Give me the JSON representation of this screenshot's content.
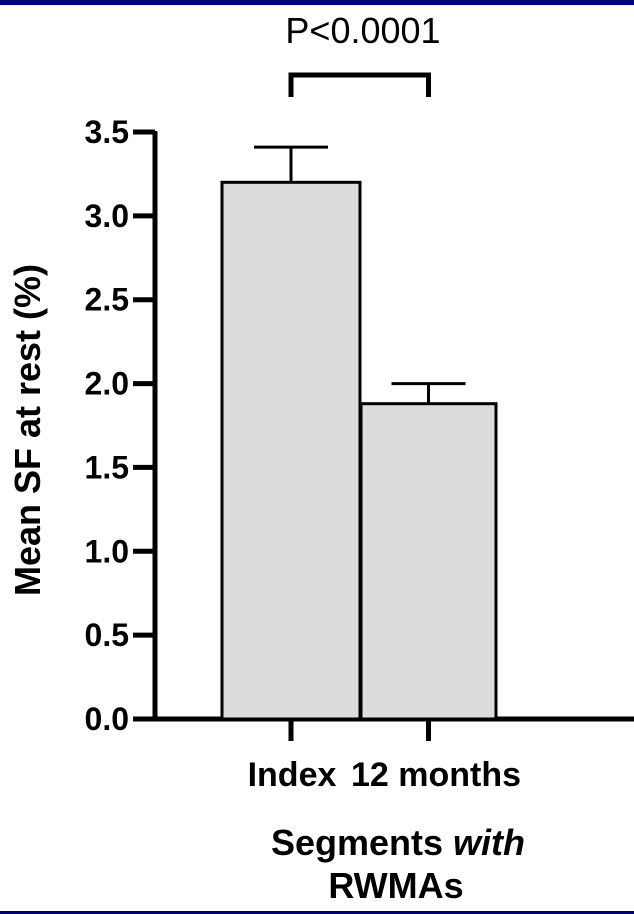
{
  "chart_data": {
    "type": "bar",
    "categories": [
      "Index",
      "12 months"
    ],
    "values": [
      3.2,
      1.88
    ],
    "error_upper": [
      3.41,
      2.0
    ],
    "ylabel": "Mean SF at rest (%)",
    "xlabel": {
      "line1_normal": "Segments ",
      "line1_italic": "with",
      "line2": "RWMAs"
    },
    "ylim": [
      0,
      3.5
    ],
    "yticks": [
      "0.0",
      "0.5",
      "1.0",
      "1.5",
      "2.0",
      "2.5",
      "3.0",
      "3.5"
    ],
    "annotation": "P<0.0001",
    "grid": false,
    "bar_color": "#dcdcdc",
    "frame_color": "#000080"
  }
}
